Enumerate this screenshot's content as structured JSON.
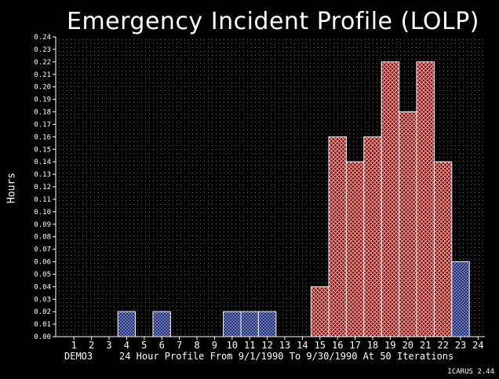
{
  "chart_data": {
    "type": "bar",
    "title": "Emergency Incident Profile (LOLP)",
    "ylabel": "Hours",
    "xlabel": "",
    "ylim": [
      0,
      0.24
    ],
    "ytick_step": 0.01,
    "categories": [
      "1",
      "2",
      "3",
      "4",
      "5",
      "6",
      "7",
      "8",
      "9",
      "10",
      "11",
      "12",
      "13",
      "14",
      "15",
      "16",
      "17",
      "18",
      "19",
      "20",
      "21",
      "22",
      "23",
      "24"
    ],
    "values": [
      0,
      0,
      0,
      0.02,
      0,
      0.02,
      0,
      0,
      0,
      0.02,
      0.02,
      0.02,
      0,
      0,
      0.04,
      0.16,
      0.14,
      0.16,
      0.22,
      0.18,
      0.22,
      0.14,
      0.06,
      0
    ],
    "grid": true,
    "legend": "none"
  },
  "footer": {
    "case_name": "DEMO3",
    "description": "24 Hour Profile From 9/1/1990 To 9/30/1990 At 50 Iterations"
  },
  "version": "ICARUS 2.44",
  "colors": {
    "background": "#000000",
    "red_fill": "#c03030",
    "blue_fill": "#2a3a80",
    "axis": "#ffffff",
    "grid": "#8a8a8a"
  }
}
